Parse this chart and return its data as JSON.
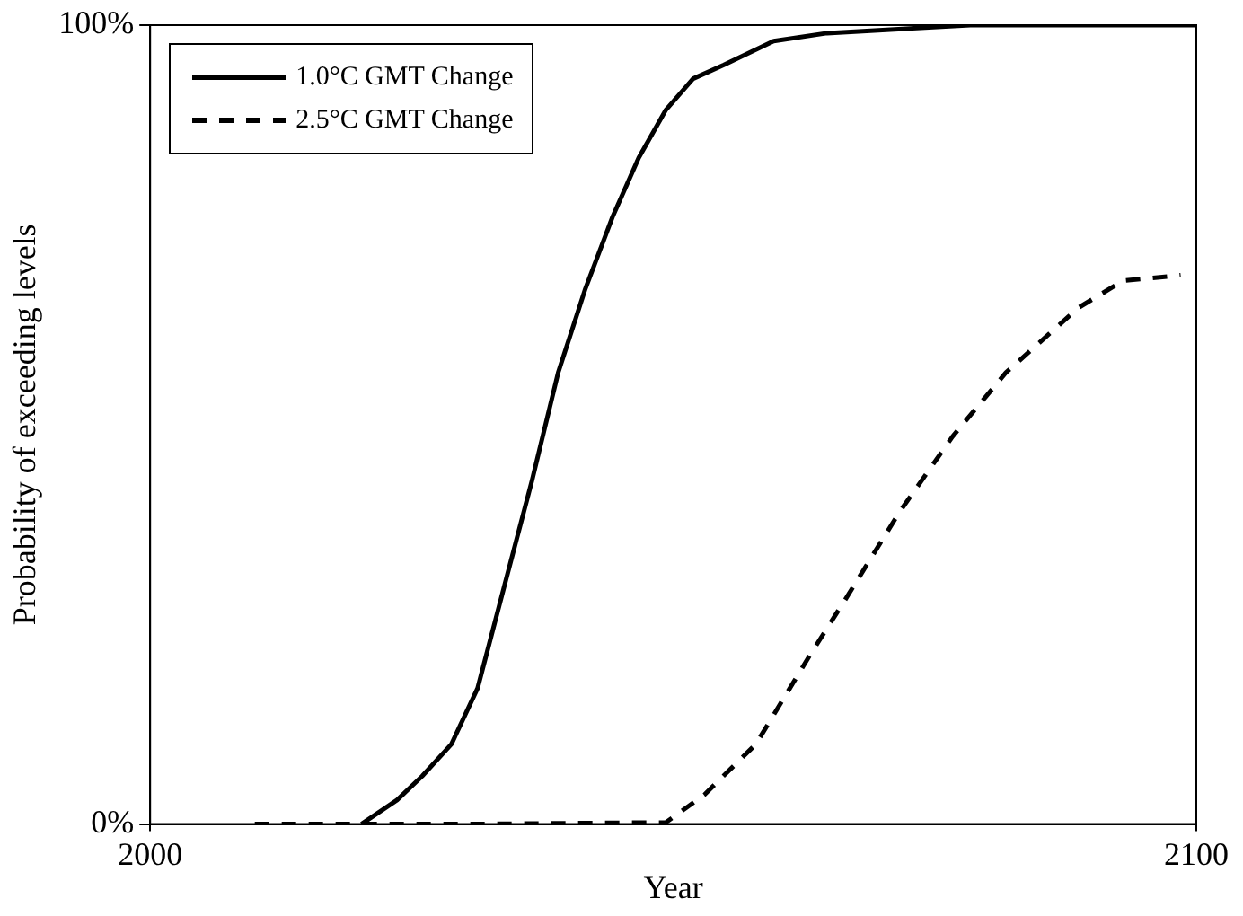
{
  "chart_data": {
    "type": "line",
    "xlabel": "Year",
    "ylabel": "Probability of exceeding levels",
    "xlim": [
      2000,
      2100
    ],
    "xticks": [
      2000,
      2100
    ],
    "ylim": [
      0,
      100
    ],
    "yticks": [
      {
        "value": 0,
        "label": "0%"
      },
      {
        "value": 100,
        "label": "100%"
      }
    ],
    "legend": "top left",
    "marker": "none",
    "series": [
      {
        "name": "1.0°C GMT Change",
        "color": "#000000",
        "line_style": "solid",
        "x": [
          2020.2,
          2023.6,
          2026,
          2028.8,
          2031.3,
          2033.9,
          2036.5,
          2039,
          2041.6,
          2044.2,
          2046.7,
          2049.3,
          2051.9,
          2054.8,
          2059.6,
          2064.7,
          2078.4,
          2100
        ],
        "values": [
          0,
          3,
          6,
          10,
          17,
          30,
          43,
          56.5,
          67,
          76,
          83.4,
          89.4,
          93.3,
          95,
          98,
          99,
          100,
          100
        ]
      },
      {
        "name": "2.5°C GMT Change",
        "color": "#000000",
        "line_style": "dashed",
        "x": [
          2010,
          2030,
          2049.3,
          2053,
          2057.9,
          2063,
          2066.4,
          2071.6,
          2076.7,
          2081.8,
          2088.7,
          2093,
          2098.5
        ],
        "values": [
          0,
          0,
          0.2,
          3.7,
          10,
          21,
          28,
          39,
          48.5,
          56.5,
          64.6,
          68,
          68.7
        ]
      }
    ]
  }
}
